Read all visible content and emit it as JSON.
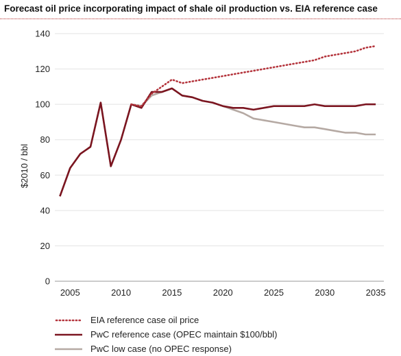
{
  "title": "Forecast oil price incorporating impact of shale oil production vs. EIA reference case",
  "chart_data": {
    "type": "line",
    "title": "Forecast oil price incorporating impact of shale oil production vs. EIA reference case",
    "xlabel": "",
    "ylabel": "$2010 / bbl",
    "xlim": [
      2003.5,
      2035.8
    ],
    "ylim": [
      0,
      140
    ],
    "x_ticks": [
      2005,
      2010,
      2015,
      2020,
      2025,
      2030,
      2035
    ],
    "y_ticks": [
      0,
      20,
      40,
      60,
      80,
      100,
      120,
      140
    ],
    "grid": true,
    "legend_position": "bottom",
    "series": [
      {
        "name": "PwC low case (no OPEC response)",
        "color": "#b5a9a3",
        "style": "solid",
        "x": [
          2004,
          2005,
          2006,
          2007,
          2008,
          2009,
          2010,
          2011,
          2012,
          2013,
          2014,
          2015,
          2016,
          2017,
          2018,
          2019,
          2020,
          2021,
          2022,
          2023,
          2024,
          2025,
          2026,
          2027,
          2028,
          2029,
          2030,
          2031,
          2032,
          2033,
          2034,
          2035
        ],
        "y": [
          48,
          64,
          72,
          76,
          101,
          65,
          80,
          100,
          99,
          105,
          107,
          109,
          105,
          104,
          102,
          101,
          99,
          97,
          95,
          92,
          91,
          90,
          89,
          88,
          87,
          87,
          86,
          85,
          84,
          84,
          83,
          83
        ]
      },
      {
        "name": "PwC reference case (OPEC maintain $100/bbl)",
        "color": "#7b1520",
        "style": "solid",
        "x": [
          2004,
          2005,
          2006,
          2007,
          2008,
          2009,
          2010,
          2011,
          2012,
          2013,
          2014,
          2015,
          2016,
          2017,
          2018,
          2019,
          2020,
          2021,
          2022,
          2023,
          2024,
          2025,
          2026,
          2027,
          2028,
          2029,
          2030,
          2031,
          2032,
          2033,
          2034,
          2035
        ],
        "y": [
          48,
          64,
          72,
          76,
          101,
          65,
          80,
          100,
          98,
          107,
          107,
          109,
          105,
          104,
          102,
          101,
          99,
          98,
          98,
          97,
          98,
          99,
          99,
          99,
          99,
          100,
          99,
          99,
          99,
          99,
          100,
          100
        ]
      },
      {
        "name": "EIA reference case oil price",
        "color": "#b4343c",
        "style": "dotted",
        "x": [
          2011,
          2012,
          2013,
          2014,
          2015,
          2016,
          2017,
          2018,
          2019,
          2020,
          2021,
          2022,
          2023,
          2024,
          2025,
          2026,
          2027,
          2028,
          2029,
          2030,
          2031,
          2032,
          2033,
          2034,
          2035
        ],
        "y": [
          100,
          99,
          106,
          110,
          114,
          112,
          113,
          114,
          115,
          116,
          117,
          118,
          119,
          120,
          121,
          122,
          123,
          124,
          125,
          127,
          128,
          129,
          130,
          132,
          133
        ]
      }
    ]
  },
  "legend": [
    {
      "label": "EIA reference case oil price",
      "color": "#b4343c",
      "style": "dotted"
    },
    {
      "label": "PwC reference case (OPEC maintain $100/bbl)",
      "color": "#7b1520",
      "style": "solid"
    },
    {
      "label": "PwC low case (no OPEC response)",
      "color": "#b5a9a3",
      "style": "solid"
    }
  ]
}
